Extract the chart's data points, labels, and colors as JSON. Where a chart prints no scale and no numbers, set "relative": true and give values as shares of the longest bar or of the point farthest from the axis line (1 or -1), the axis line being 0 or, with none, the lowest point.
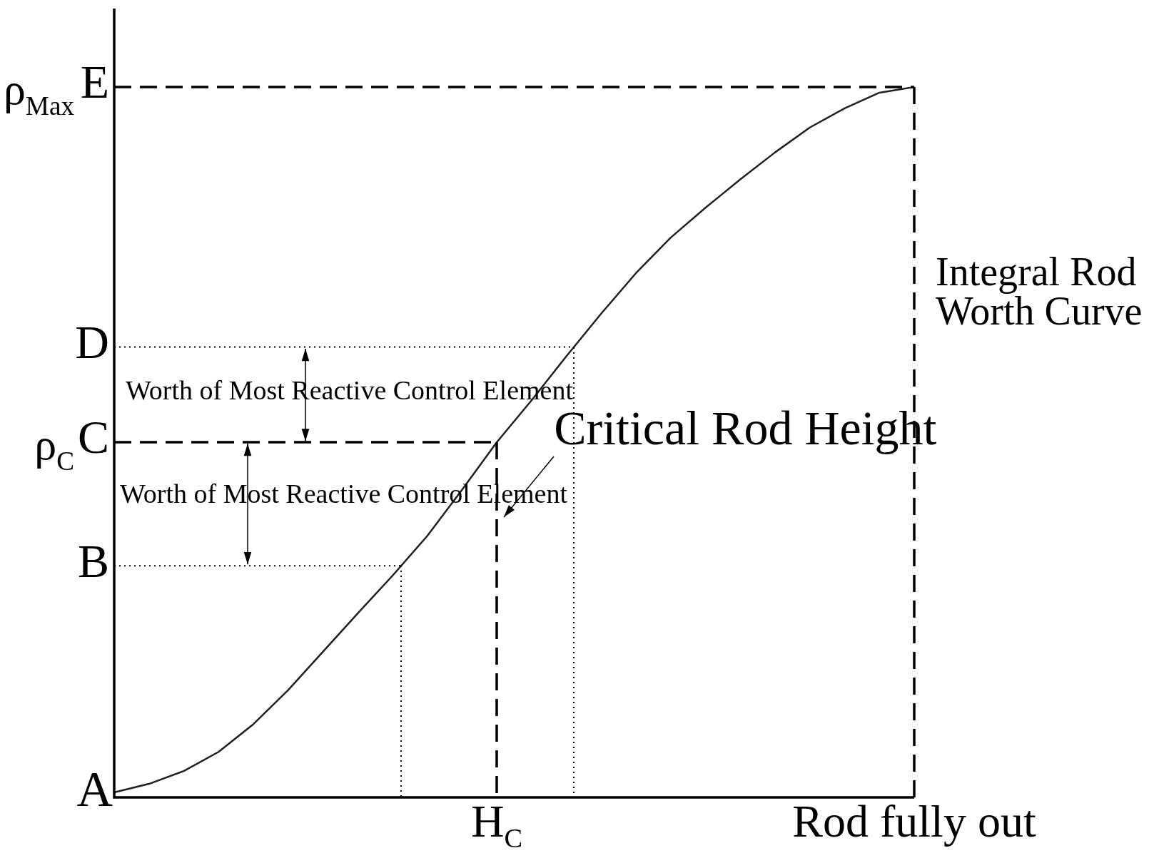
{
  "chart_data": {
    "type": "line",
    "relative": true,
    "color": "#231f20",
    "marker": "none",
    "line_style": "solid",
    "legend": false,
    "tick_labels": "x",
    "categories": [
      null,
      null,
      null,
      null,
      null,
      null,
      null,
      null,
      null,
      null,
      null,
      "H$_{C}$",
      null,
      null,
      null,
      null,
      null,
      null,
      null,
      null,
      null,
      null,
      null,
      "Rod fully out"
    ],
    "values": [
      0.007,
      0.019,
      0.037,
      0.064,
      0.103,
      0.151,
      0.205,
      0.259,
      0.312,
      0.368,
      0.433,
      0.5,
      0.559,
      0.621,
      0.681,
      0.738,
      0.788,
      0.83,
      0.87,
      0.908,
      0.943,
      0.97,
      0.992,
      1
    ],
    "ref_lines": [
      {
        "axis": "y",
        "value": 0.634,
        "label": "D",
        "line_style": "dotted",
        "color": "#000000"
      },
      {
        "axis": "y",
        "value": 0.5,
        "label": "C",
        "line_style": "dashed",
        "color": "#000000"
      },
      {
        "axis": "y",
        "value": 0.326,
        "label": "B",
        "line_style": "dotted",
        "color": "#000000"
      },
      {
        "axis": "y",
        "value": 1,
        "label": "E",
        "line_style": "dashed",
        "color": "#000000"
      }
    ],
    "annotations": [
      "A",
      "ρ$_{C}$",
      "ρ$_{Max}$",
      "Worth of Most Reactive Control Element",
      "Worth of Most Reactive Control Element",
      {
        "text": "Critical Rod Height",
        "x": "H$_{C}$",
        "y": 0.5
      },
      "Integral Rod Worth Curve"
    ]
  }
}
